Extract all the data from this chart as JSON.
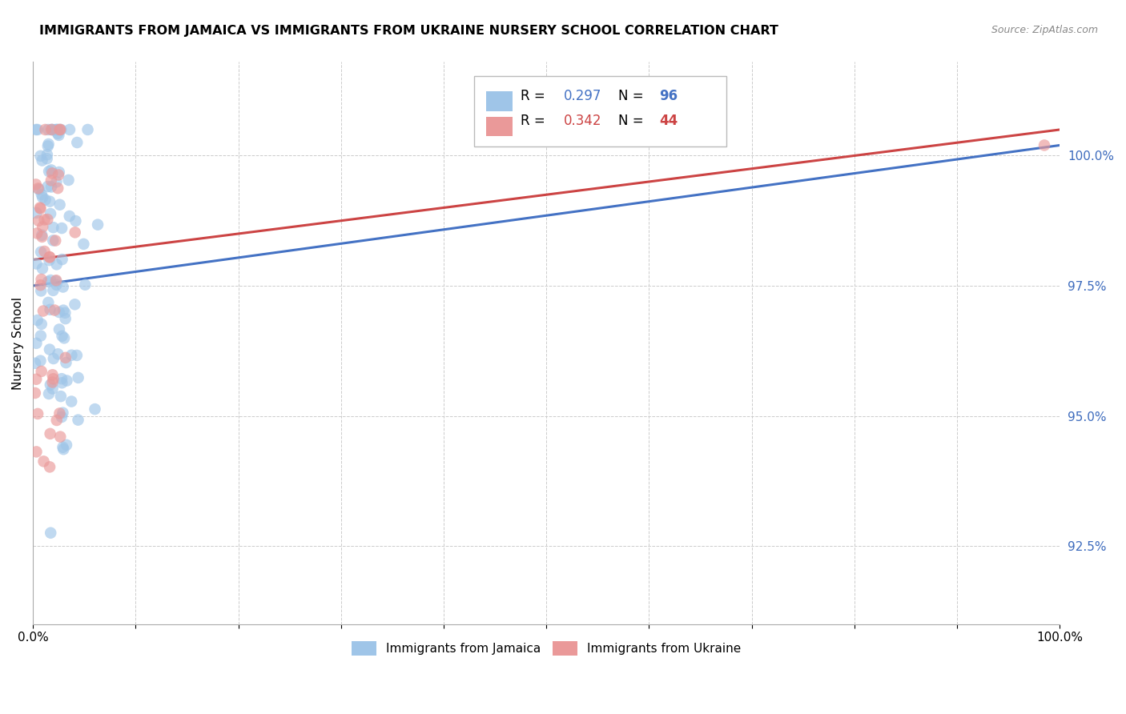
{
  "title": "IMMIGRANTS FROM JAMAICA VS IMMIGRANTS FROM UKRAINE NURSERY SCHOOL CORRELATION CHART",
  "source": "Source: ZipAtlas.com",
  "ylabel": "Nursery School",
  "ytick_values": [
    92.5,
    95.0,
    97.5,
    100.0
  ],
  "xmin": 0.0,
  "xmax": 100.0,
  "ymin": 91.0,
  "ymax": 101.8,
  "r_jamaica": 0.297,
  "n_jamaica": 96,
  "r_ukraine": 0.342,
  "n_ukraine": 44,
  "color_jamaica": "#9fc5e8",
  "color_ukraine": "#ea9999",
  "color_line_jamaica": "#4472c4",
  "color_line_ukraine": "#cc4444",
  "legend_label_jamaica": "Immigrants from Jamaica",
  "legend_label_ukraine": "Immigrants from Ukraine"
}
